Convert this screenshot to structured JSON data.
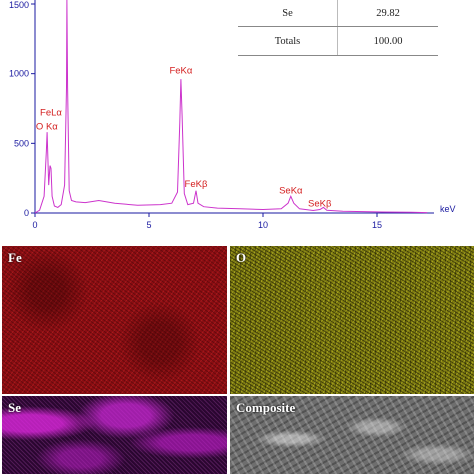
{
  "chart_data": {
    "type": "line",
    "xlabel": "keV",
    "ylabel": "",
    "xlim": [
      0,
      17.5
    ],
    "ylim": [
      0,
      1500
    ],
    "x_ticks": [
      0,
      5,
      10,
      15
    ],
    "y_ticks": [
      0,
      500,
      1000,
      1500
    ],
    "series": [
      {
        "x": [
          0.0,
          0.2,
          0.4,
          0.5,
          0.53,
          0.6,
          0.66,
          0.7,
          0.75,
          0.85,
          1.0,
          1.15,
          1.3,
          1.38,
          1.4,
          1.43,
          1.5,
          1.6,
          1.8,
          2.2,
          2.8,
          3.5,
          4.5,
          5.5,
          6.0,
          6.25,
          6.35,
          6.4,
          6.45,
          6.55,
          6.7,
          6.95,
          7.06,
          7.15,
          7.4,
          8.0,
          9.0,
          10.0,
          10.8,
          11.1,
          11.22,
          11.35,
          11.6,
          12.2,
          12.5,
          12.65,
          12.8,
          13.5,
          15.0,
          16.5,
          17.2
        ],
        "y": [
          0,
          20,
          120,
          450,
          580,
          200,
          340,
          320,
          120,
          50,
          40,
          60,
          200,
          900,
          1600,
          900,
          160,
          90,
          80,
          75,
          90,
          70,
          55,
          60,
          70,
          150,
          650,
          960,
          700,
          140,
          60,
          70,
          160,
          70,
          45,
          35,
          30,
          25,
          30,
          70,
          120,
          70,
          30,
          18,
          25,
          40,
          20,
          12,
          8,
          5,
          3
        ]
      }
    ],
    "annotations": [
      {
        "text": "FeLα",
        "x": 0.7,
        "y": 700
      },
      {
        "text": "O Kα",
        "x": 0.52,
        "y": 600
      },
      {
        "text": "FeKα",
        "x": 6.4,
        "y": 1000
      },
      {
        "text": "FeKβ",
        "x": 7.06,
        "y": 185
      },
      {
        "text": "SeKα",
        "x": 11.22,
        "y": 140
      },
      {
        "text": "SeKβ",
        "x": 12.49,
        "y": 45
      }
    ]
  },
  "table": {
    "rows": [
      {
        "element": "Se",
        "value": "29.82"
      },
      {
        "element": "Totals",
        "value": "100.00"
      }
    ]
  },
  "maps": {
    "fe_label": "Fe",
    "o_label": "O",
    "se_label": "Se",
    "composite_label": "Composite"
  },
  "colors": {
    "spectrum": "#cc33cc",
    "axis": "#1a1aa0",
    "peak_label": "#d42020"
  }
}
